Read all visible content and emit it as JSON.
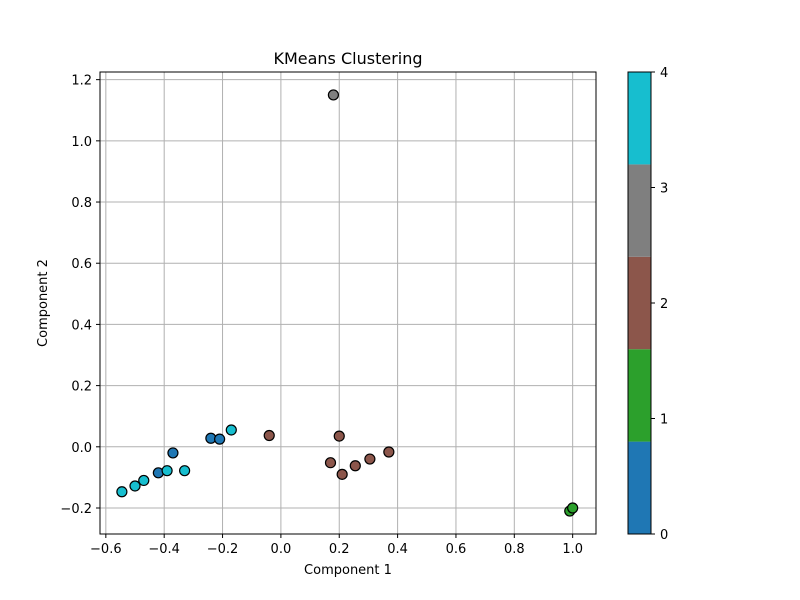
{
  "chart_data": {
    "type": "scatter",
    "title": "KMeans Clustering",
    "xlabel": "Component 1",
    "ylabel": "Component 2",
    "xlim": [
      -0.62,
      1.08
    ],
    "ylim": [
      -0.285,
      1.225
    ],
    "xticks": [
      -0.6,
      -0.4,
      -0.2,
      0.0,
      0.2,
      0.4,
      0.6,
      0.8,
      1.0
    ],
    "xtick_labels": [
      "−0.6",
      "−0.4",
      "−0.2",
      "0.0",
      "0.2",
      "0.4",
      "0.6",
      "0.8",
      "1.0"
    ],
    "yticks": [
      -0.2,
      0.0,
      0.2,
      0.4,
      0.6,
      0.8,
      1.0,
      1.2
    ],
    "ytick_labels": [
      "−0.2",
      "0.0",
      "0.2",
      "0.4",
      "0.6",
      "0.8",
      "1.0",
      "1.2"
    ],
    "grid": true,
    "points": [
      {
        "x": -0.24,
        "y": 0.028,
        "cluster": 0
      },
      {
        "x": -0.21,
        "y": 0.025,
        "cluster": 0
      },
      {
        "x": -0.37,
        "y": -0.02,
        "cluster": 0
      },
      {
        "x": -0.42,
        "y": -0.085,
        "cluster": 0
      },
      {
        "x": 0.99,
        "y": -0.21,
        "cluster": 1
      },
      {
        "x": 1.0,
        "y": -0.2,
        "cluster": 1
      },
      {
        "x": -0.04,
        "y": 0.037,
        "cluster": 2
      },
      {
        "x": 0.2,
        "y": 0.035,
        "cluster": 2
      },
      {
        "x": 0.17,
        "y": -0.052,
        "cluster": 2
      },
      {
        "x": 0.21,
        "y": -0.09,
        "cluster": 2
      },
      {
        "x": 0.255,
        "y": -0.062,
        "cluster": 2
      },
      {
        "x": 0.305,
        "y": -0.04,
        "cluster": 2
      },
      {
        "x": 0.37,
        "y": -0.017,
        "cluster": 2
      },
      {
        "x": 0.18,
        "y": 1.15,
        "cluster": 3
      },
      {
        "x": -0.17,
        "y": 0.055,
        "cluster": 4
      },
      {
        "x": -0.33,
        "y": -0.078,
        "cluster": 4
      },
      {
        "x": -0.39,
        "y": -0.078,
        "cluster": 4
      },
      {
        "x": -0.47,
        "y": -0.11,
        "cluster": 4
      },
      {
        "x": -0.5,
        "y": -0.128,
        "cluster": 4
      },
      {
        "x": -0.545,
        "y": -0.147,
        "cluster": 4
      }
    ],
    "colorbar": {
      "min": 0,
      "max": 4,
      "ticks": [
        0,
        1,
        2,
        3,
        4
      ],
      "tick_labels": [
        "0",
        "1",
        "2",
        "3",
        "4"
      ],
      "colors": [
        "#1f77b4",
        "#2ca02c",
        "#8c564b",
        "#7f7f7f",
        "#17becf"
      ]
    }
  }
}
